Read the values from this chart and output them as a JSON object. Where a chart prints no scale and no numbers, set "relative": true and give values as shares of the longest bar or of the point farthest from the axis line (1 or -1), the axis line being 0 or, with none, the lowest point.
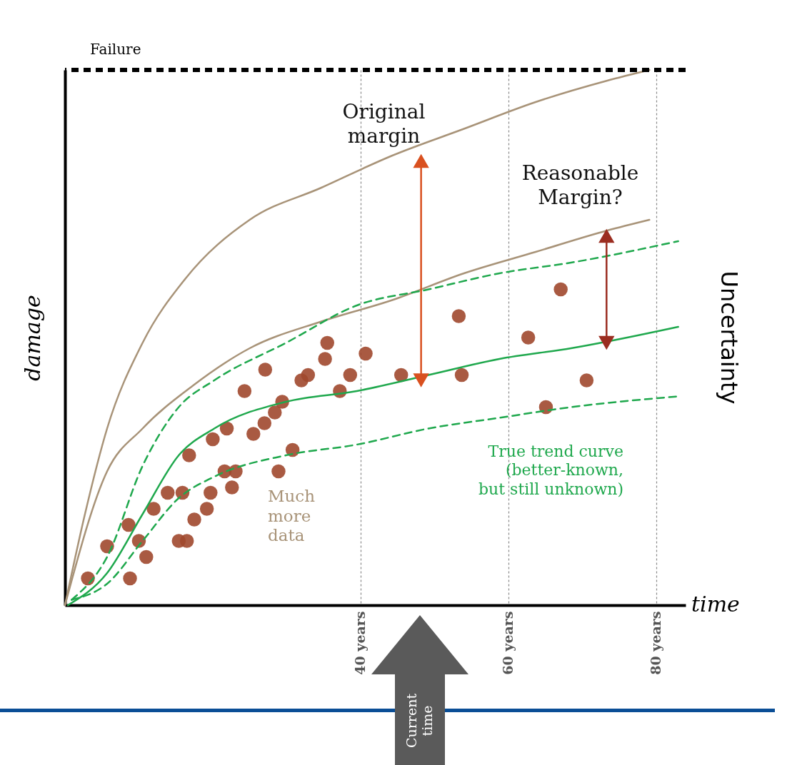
{
  "chart_data": {
    "type": "line",
    "relative": true,
    "ylabel": "damage",
    "xlabel": "time",
    "y2label": "Uncertainty",
    "xlim": [
      0,
      84
    ],
    "xticks": [
      {
        "value": 40,
        "label": "40 years"
      },
      {
        "value": 60,
        "label": "60 years"
      },
      {
        "value": 80,
        "label": "80 years"
      }
    ],
    "grid": "x",
    "series": [
      {
        "color": "#a89378",
        "x": [
          0,
          2.7,
          5.7,
          10.5,
          16.3,
          25,
          34.7,
          44.3,
          54,
          63.7,
          73.4,
          79.1
        ],
        "values": [
          0,
          0.17,
          0.33,
          0.49,
          0.61,
          0.72,
          0.78,
          0.84,
          0.89,
          0.94,
          0.98,
          1.0
        ]
      },
      {
        "color": "#a89378",
        "x": [
          0,
          5.7,
          10.5,
          17.3,
          25,
          34.7,
          44.3,
          54,
          63.7,
          73.4,
          79.1
        ],
        "values": [
          0,
          0.25,
          0.33,
          0.41,
          0.48,
          0.53,
          0.57,
          0.62,
          0.66,
          0.7,
          0.72
        ]
      },
      {
        "color": "#1fa84d",
        "line_style": "solid",
        "x": [
          0.4,
          5.7,
          10.5,
          15.4,
          20.2,
          29.9,
          39.5,
          49.2,
          58.8,
          68.5,
          83
        ],
        "values": [
          0,
          0.06,
          0.17,
          0.28,
          0.33,
          0.38,
          0.4,
          0.43,
          0.46,
          0.48,
          0.52
        ]
      },
      {
        "color": "#1fa84d",
        "line_style": "dashed",
        "x": [
          0.9,
          5.7,
          10.5,
          15.4,
          20.2,
          29.9,
          39.5,
          49.2,
          58.8,
          68.5,
          83
        ],
        "values": [
          0.01,
          0.09,
          0.26,
          0.37,
          0.42,
          0.49,
          0.56,
          0.59,
          0.62,
          0.64,
          0.68
        ]
      },
      {
        "color": "#1fa84d",
        "line_style": "dashed",
        "x": [
          0.9,
          5.7,
          10.5,
          15.4,
          20.2,
          29.9,
          39.5,
          49.2,
          58.8,
          68.5,
          83
        ],
        "values": [
          0.01,
          0.04,
          0.12,
          0.2,
          0.24,
          0.28,
          0.3,
          0.33,
          0.35,
          0.37,
          0.39
        ]
      },
      {
        "type": "scatter",
        "color": "#a0482e",
        "marker": "circle",
        "x": [
          3.1,
          5.7,
          8.6,
          8.8,
          11.0,
          10.0,
          12.0,
          13.9,
          15.9,
          15.4,
          16.5,
          17.5,
          19.2,
          19.7,
          16.8,
          20.0,
          21.9,
          21.6,
          23.1,
          22.6,
          24.3,
          25.5,
          27.1,
          27.0,
          28.4,
          29.4,
          30.8,
          28.9,
          32.0,
          32.9,
          35.2,
          35.5,
          37.2,
          38.6,
          40.7,
          45.5,
          53.3,
          53.7,
          62.7,
          65.1,
          67.1,
          70.6
        ],
        "values": [
          0.05,
          0.11,
          0.15,
          0.05,
          0.09,
          0.12,
          0.18,
          0.21,
          0.21,
          0.12,
          0.12,
          0.16,
          0.18,
          0.21,
          0.28,
          0.31,
          0.33,
          0.25,
          0.25,
          0.22,
          0.4,
          0.32,
          0.44,
          0.34,
          0.36,
          0.38,
          0.29,
          0.25,
          0.42,
          0.43,
          0.46,
          0.49,
          0.4,
          0.43,
          0.47,
          0.43,
          0.54,
          0.43,
          0.5,
          0.37,
          0.59,
          0.42
        ]
      },
      {
        "color": "#d9501f",
        "marker": "triangle",
        "x": [
          48.2,
          48.2
        ],
        "values": [
          0.83,
          0.42
        ]
      },
      {
        "color": "#9b2d20",
        "marker": "triangle",
        "x": [
          73.3,
          73.3
        ],
        "values": [
          0.69,
          0.49
        ]
      }
    ],
    "ref_lines": [
      {
        "axis": "y",
        "value": 1,
        "label": "Failure",
        "color": "#000000",
        "line_style": "dashed"
      }
    ],
    "annotations": [
      "Original\nmargin",
      "Reasonable\nMargin?",
      "Much\nmore\ndata",
      "True trend curve\n(better-known,\nbut still unknown)",
      "Current\ntime"
    ]
  }
}
